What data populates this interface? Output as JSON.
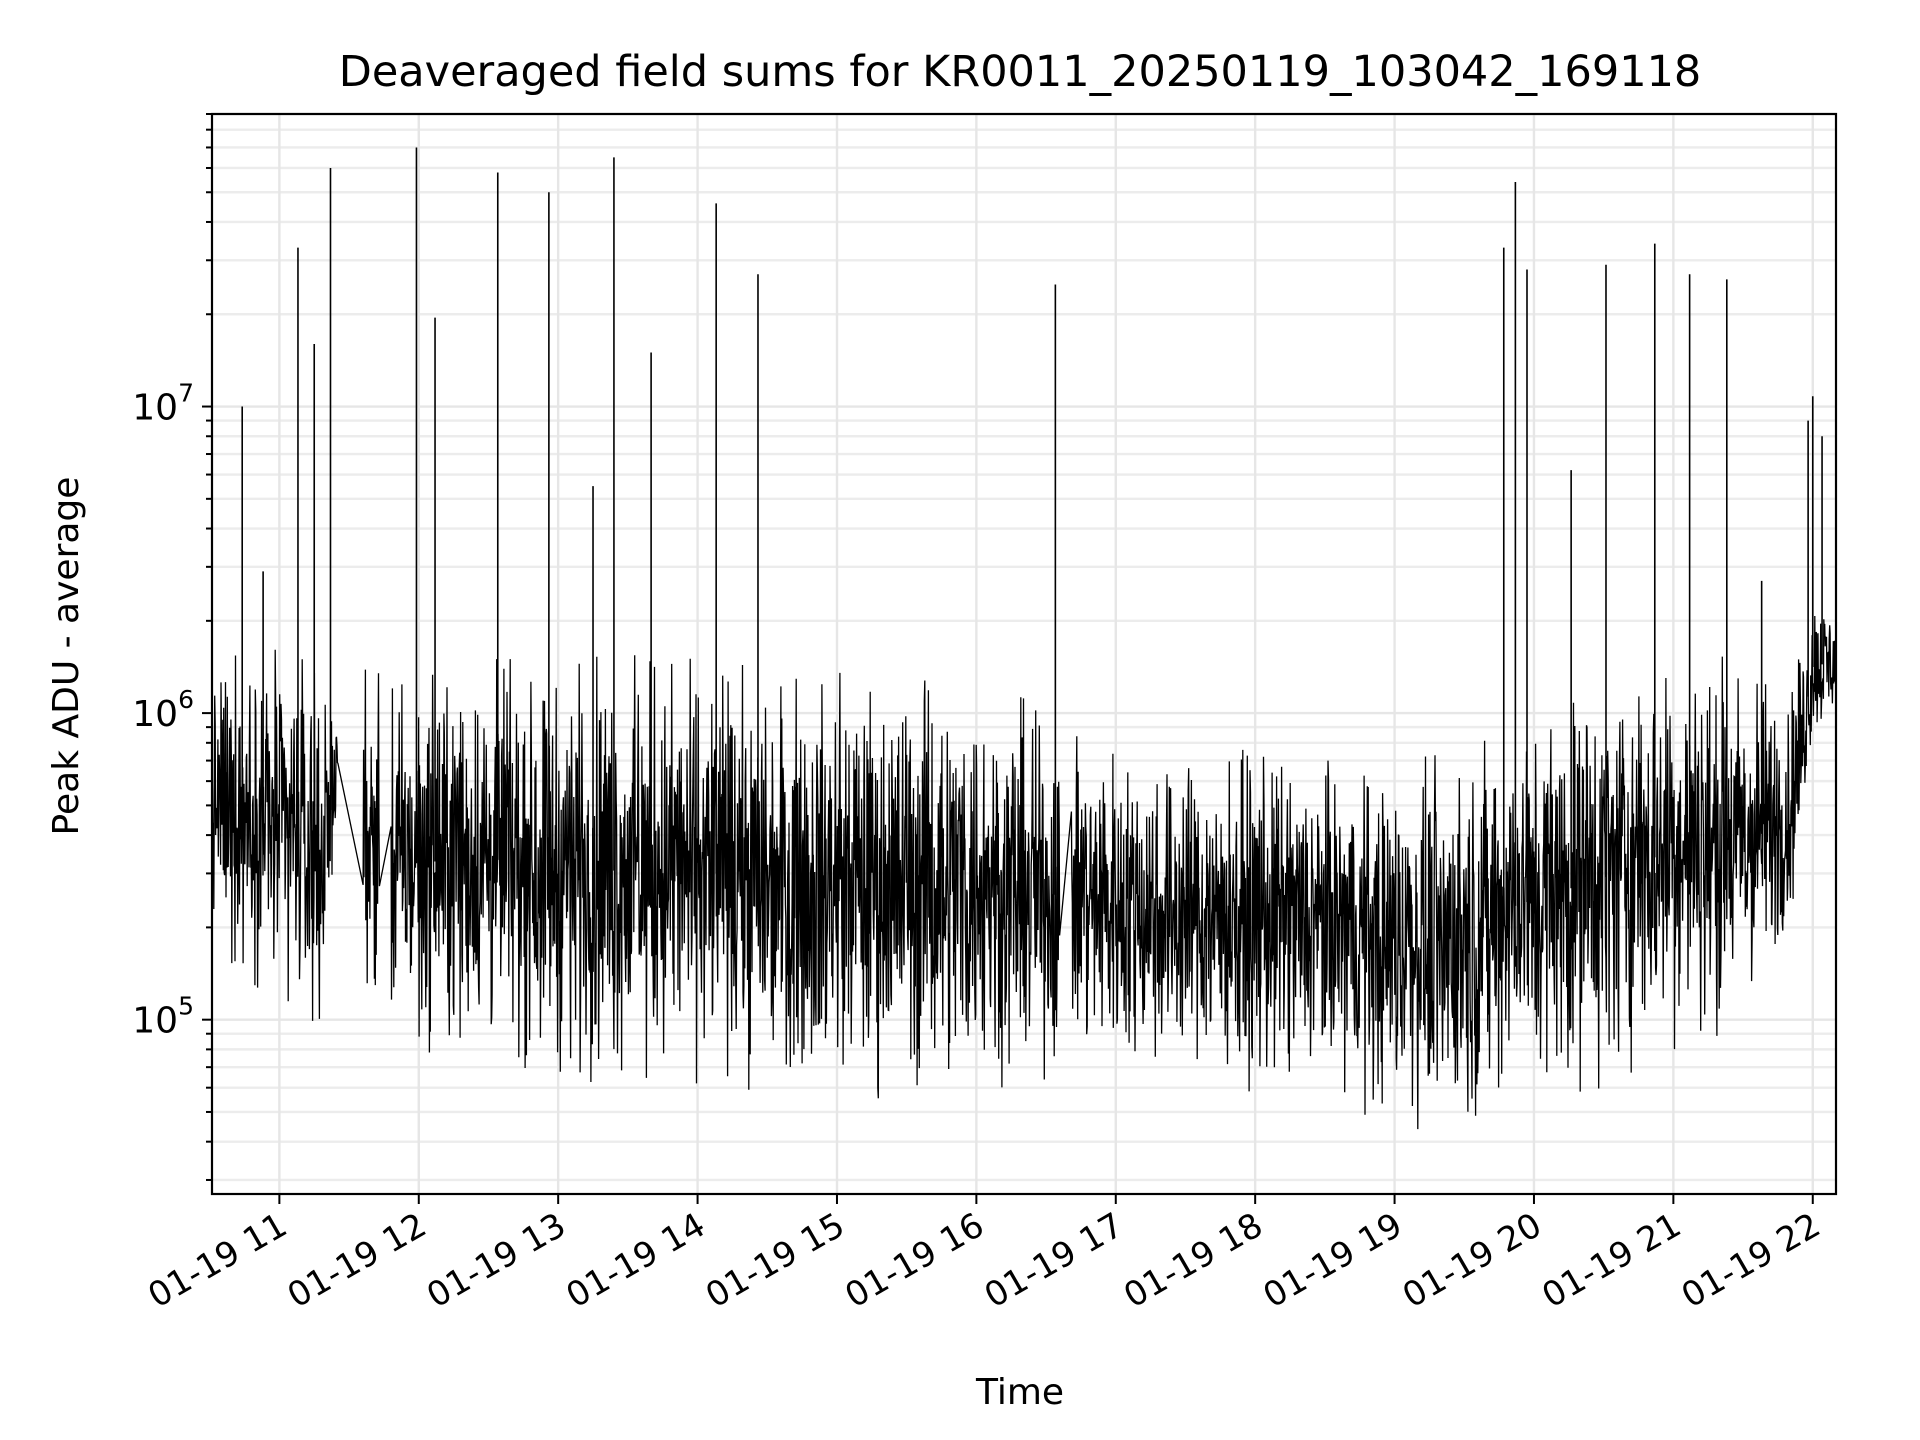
{
  "chart_data": {
    "type": "line",
    "title": "Deaveraged field sums for KR0011_20250119_103042_169118",
    "xlabel": "Time",
    "ylabel": "Peak ADU - average",
    "yscale": "log",
    "ylim": [
      27000,
      90000000
    ],
    "xlim": [
      "01-19 10:31",
      "01-19 22:10"
    ],
    "grid": true,
    "color": "#000000",
    "x_ticks": [
      {
        "label": "01-19 11",
        "hour": 11
      },
      {
        "label": "01-19 12",
        "hour": 12
      },
      {
        "label": "01-19 13",
        "hour": 13
      },
      {
        "label": "01-19 14",
        "hour": 14
      },
      {
        "label": "01-19 15",
        "hour": 15
      },
      {
        "label": "01-19 16",
        "hour": 16
      },
      {
        "label": "01-19 17",
        "hour": 17
      },
      {
        "label": "01-19 18",
        "hour": 18
      },
      {
        "label": "01-19 19",
        "hour": 19
      },
      {
        "label": "01-19 20",
        "hour": 20
      },
      {
        "label": "01-19 21",
        "hour": 21
      },
      {
        "label": "01-19 22",
        "hour": 22
      }
    ],
    "y_ticks": [
      {
        "base": "10",
        "exp": "5",
        "value": 100000
      },
      {
        "base": "10",
        "exp": "6",
        "value": 1000000
      },
      {
        "base": "10",
        "exp": "7",
        "value": 10000000
      }
    ],
    "band": [
      {
        "t": "10:31",
        "low": 190000,
        "high": 1300000
      },
      {
        "t": "10:40",
        "low": 150000,
        "high": 1700000
      },
      {
        "t": "11:00",
        "low": 110000,
        "high": 1600000
      },
      {
        "t": "11:20",
        "low": 95000,
        "high": 1400000
      },
      {
        "t": "11:25",
        "low": 600000,
        "high": 900000
      },
      {
        "t": "11:35",
        "low": 130000,
        "high": 1400000
      },
      {
        "t": "11:50",
        "low": 80000,
        "high": 1300000
      },
      {
        "t": "12:30",
        "low": 75000,
        "high": 1500000
      },
      {
        "t": "13:00",
        "low": 65000,
        "high": 1500000
      },
      {
        "t": "13:30",
        "low": 60000,
        "high": 1550000
      },
      {
        "t": "14:00",
        "low": 62000,
        "high": 1500000
      },
      {
        "t": "14:30",
        "low": 58000,
        "high": 1400000
      },
      {
        "t": "15:00",
        "low": 56000,
        "high": 1350000
      },
      {
        "t": "15:30",
        "low": 55000,
        "high": 1400000
      },
      {
        "t": "16:00",
        "low": 58000,
        "high": 1300000
      },
      {
        "t": "16:35",
        "low": 65000,
        "high": 1000000
      },
      {
        "t": "17:00",
        "low": 70000,
        "high": 800000
      },
      {
        "t": "17:30",
        "low": 62000,
        "high": 800000
      },
      {
        "t": "18:00",
        "low": 58000,
        "high": 750000
      },
      {
        "t": "18:30",
        "low": 55000,
        "high": 700000
      },
      {
        "t": "19:00",
        "low": 45000,
        "high": 700000
      },
      {
        "t": "19:30",
        "low": 42000,
        "high": 750000
      },
      {
        "t": "19:50",
        "low": 60000,
        "high": 900000
      },
      {
        "t": "20:00",
        "low": 55000,
        "high": 1100000
      },
      {
        "t": "20:30",
        "low": 60000,
        "high": 1400000
      },
      {
        "t": "21:00",
        "low": 80000,
        "high": 1600000
      },
      {
        "t": "21:30",
        "low": 90000,
        "high": 1500000
      },
      {
        "t": "21:50",
        "low": 180000,
        "high": 1200000
      },
      {
        "t": "22:00",
        "low": 800000,
        "high": 2500000
      },
      {
        "t": "22:10",
        "low": 1000000,
        "high": 2200000
      }
    ],
    "spikes": [
      {
        "t": "10:44",
        "value": 10000000
      },
      {
        "t": "10:53",
        "value": 2900000
      },
      {
        "t": "11:08",
        "value": 33000000
      },
      {
        "t": "11:15",
        "value": 16000000
      },
      {
        "t": "11:22",
        "value": 60000000
      },
      {
        "t": "11:59",
        "value": 70000000
      },
      {
        "t": "12:07",
        "value": 19500000
      },
      {
        "t": "12:34",
        "value": 58000000
      },
      {
        "t": "12:56",
        "value": 50000000
      },
      {
        "t": "13:15",
        "value": 5500000
      },
      {
        "t": "13:24",
        "value": 65000000
      },
      {
        "t": "13:40",
        "value": 15000000
      },
      {
        "t": "14:08",
        "value": 46000000
      },
      {
        "t": "14:26",
        "value": 27000000
      },
      {
        "t": "16:34",
        "value": 25000000
      },
      {
        "t": "19:47",
        "value": 33000000
      },
      {
        "t": "19:52",
        "value": 54000000
      },
      {
        "t": "19:57",
        "value": 28000000
      },
      {
        "t": "20:16",
        "value": 6200000
      },
      {
        "t": "20:31",
        "value": 29000000
      },
      {
        "t": "20:52",
        "value": 34000000
      },
      {
        "t": "21:07",
        "value": 27000000
      },
      {
        "t": "21:23",
        "value": 26000000
      },
      {
        "t": "21:38",
        "value": 2700000
      },
      {
        "t": "21:58",
        "value": 9000000
      },
      {
        "t": "22:00",
        "value": 10800000
      },
      {
        "t": "22:04",
        "value": 8000000
      }
    ]
  }
}
